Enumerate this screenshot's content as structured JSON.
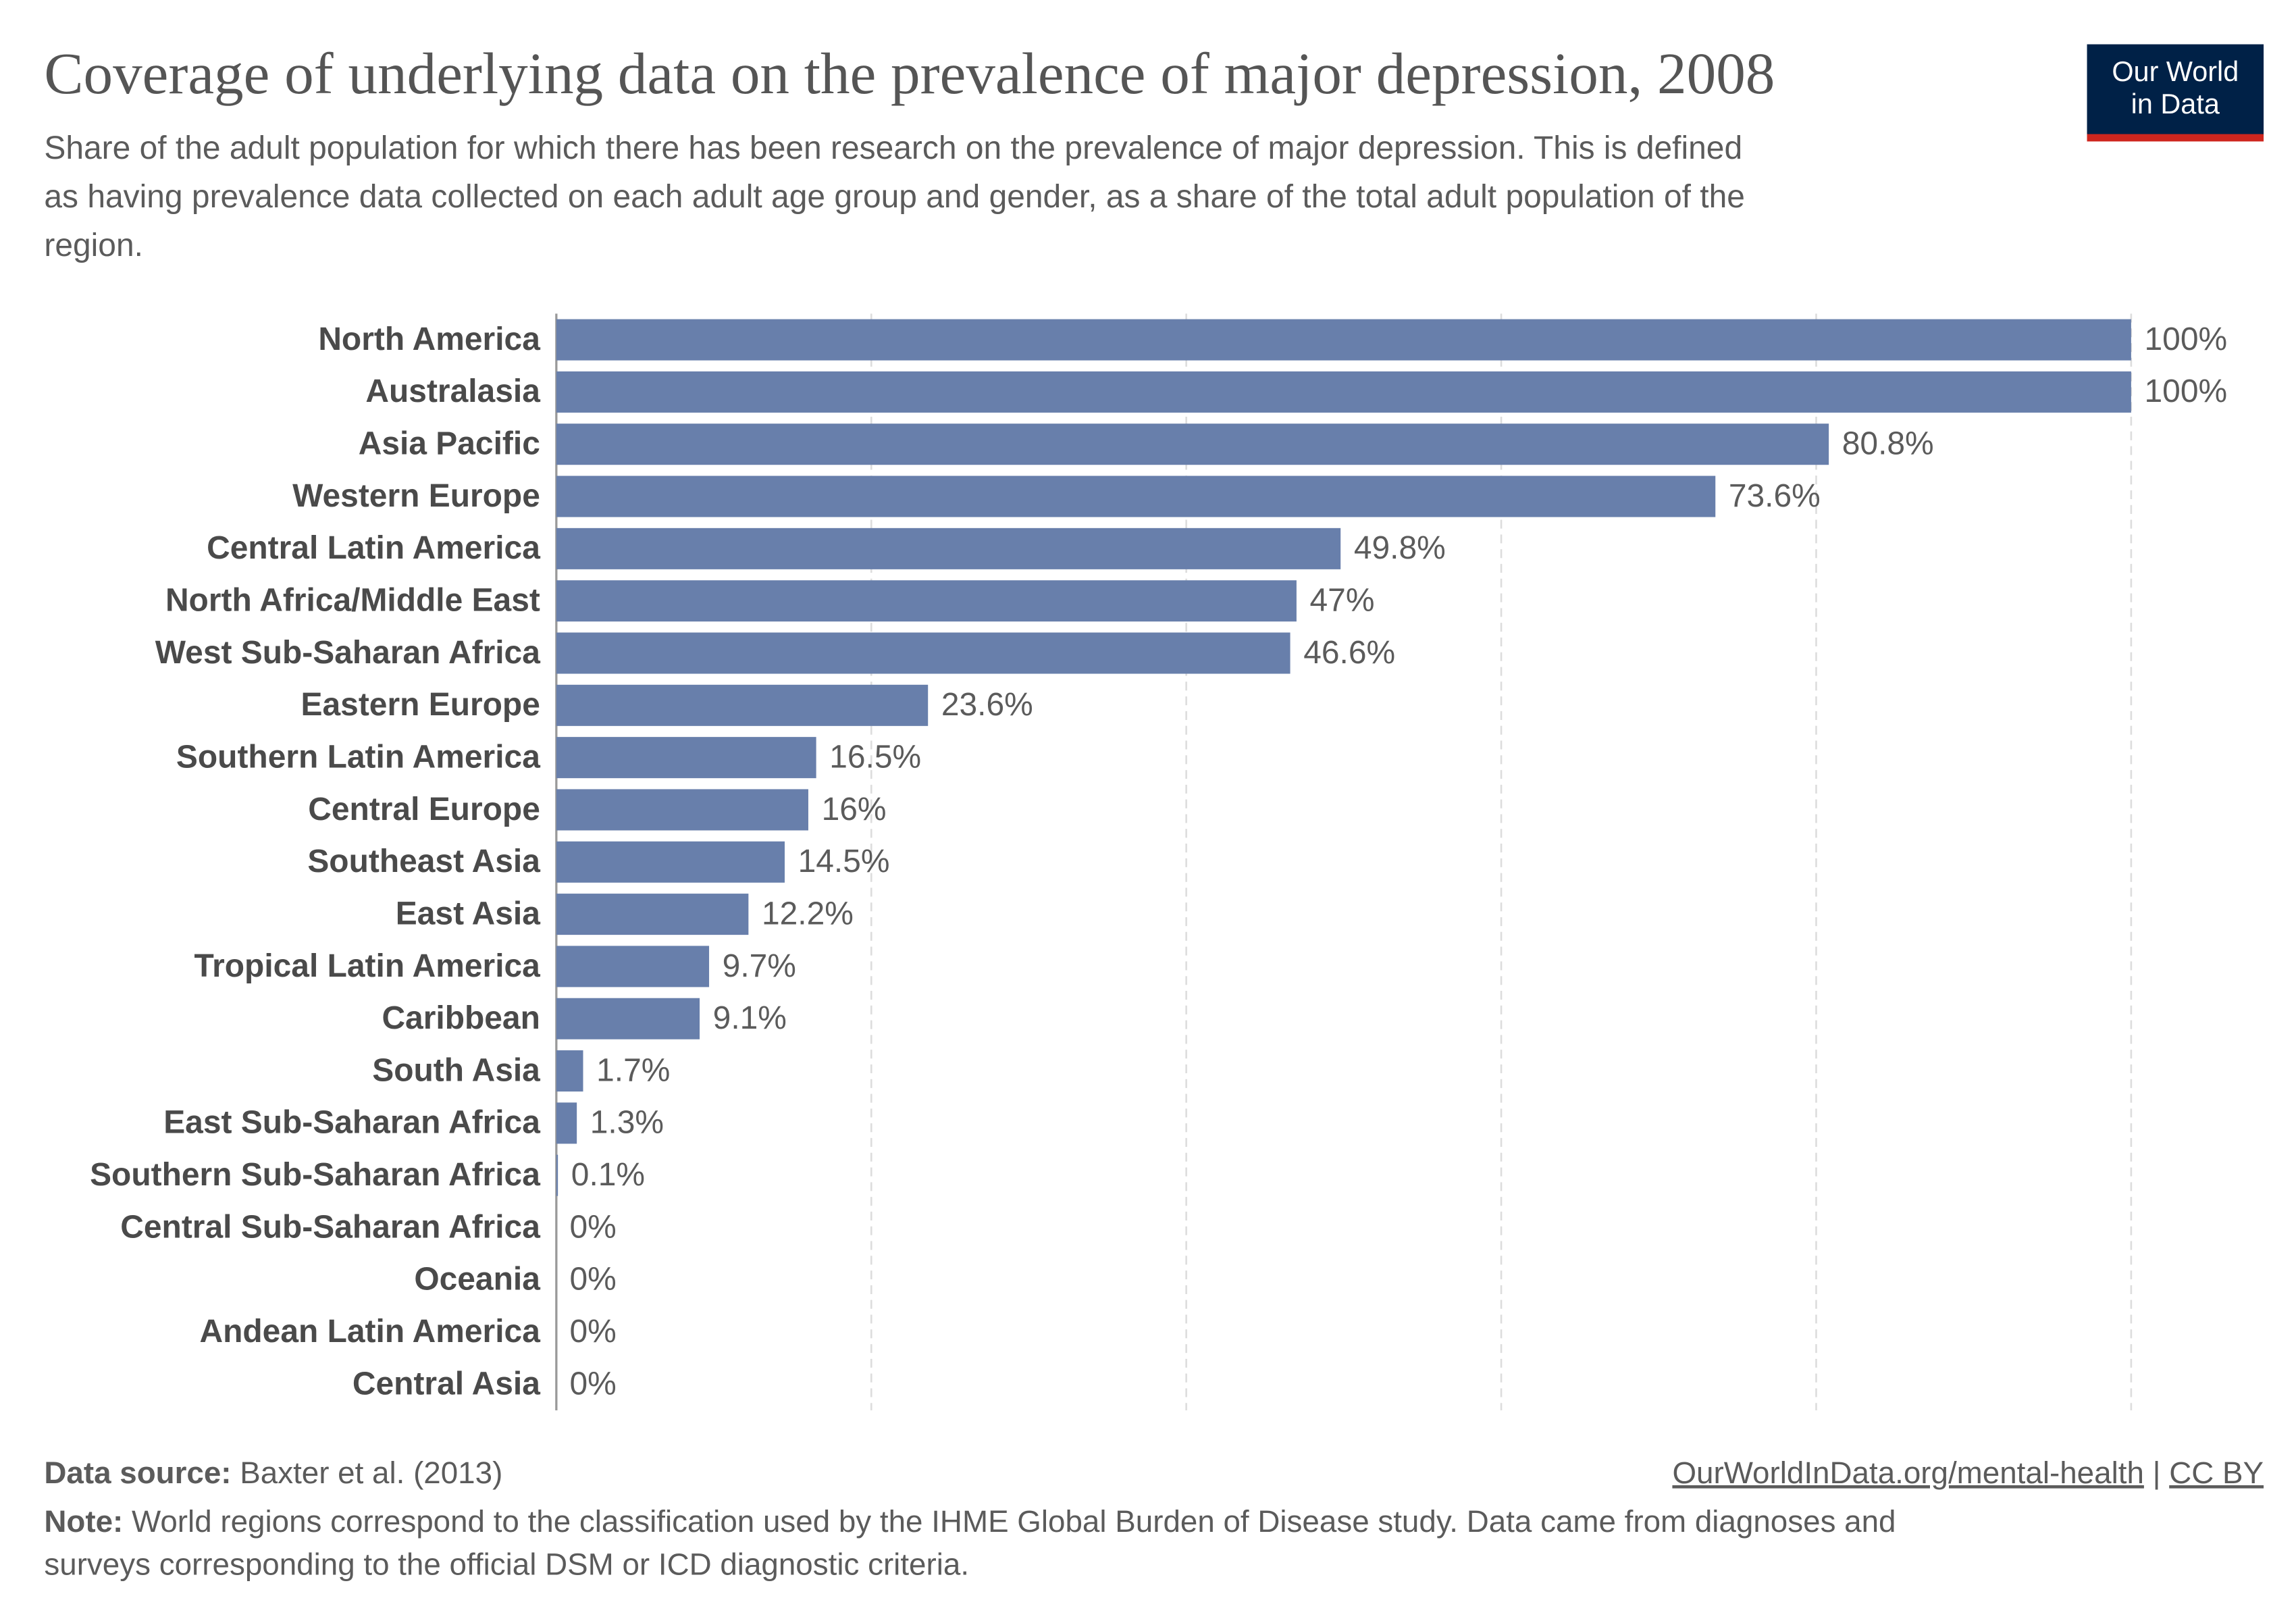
{
  "logo": [
    "Our World",
    "in Data"
  ],
  "chart_data": {
    "type": "bar",
    "orientation": "horizontal",
    "title": "Coverage of underlying data on the prevalence of major depression, 2008",
    "subtitle": [
      "Share of the adult population for which there has been research on the prevalence of major depression. This is defined",
      "as having prevalence data collected on each adult age group and gender, as a share of the total adult population of the",
      "region."
    ],
    "categories": [
      "North America",
      "Australasia",
      "Asia Pacific",
      "Western Europe",
      "Central Latin America",
      "North Africa/Middle East",
      "West Sub-Saharan Africa",
      "Eastern Europe",
      "Southern Latin America",
      "Central Europe",
      "Southeast Asia",
      "East Asia",
      "Tropical Latin America",
      "Caribbean",
      "South Asia",
      "East Sub-Saharan Africa",
      "Southern Sub-Saharan Africa",
      "Central Sub-Saharan Africa",
      "Oceania",
      "Andean Latin America",
      "Central Asia"
    ],
    "values": [
      100,
      100,
      80.8,
      73.6,
      49.8,
      47,
      46.6,
      23.6,
      16.5,
      16,
      14.5,
      12.2,
      9.7,
      9.1,
      1.7,
      1.3,
      0.1,
      0,
      0,
      0,
      0
    ],
    "value_labels": [
      "100%",
      "100%",
      "80.8%",
      "73.6%",
      "49.8%",
      "47%",
      "46.6%",
      "23.6%",
      "16.5%",
      "16%",
      "14.5%",
      "12.2%",
      "9.7%",
      "9.1%",
      "1.7%",
      "1.3%",
      "0.1%",
      "0%",
      "0%",
      "0%",
      "0%"
    ],
    "color": "#687fab",
    "xlim": [
      0,
      100
    ],
    "xticks": [
      0,
      20,
      40,
      60,
      80,
      100
    ],
    "grid": true,
    "source_label": "Data source:",
    "source": "Baxter et al. (2013)",
    "url": "OurWorldInData.org/mental-health",
    "separator": "|",
    "license": "CC BY",
    "note_label": "Note:",
    "note": [
      "World regions correspond to the classification used by the IHME Global Burden of Disease study. Data came from diagnoses and",
      "surveys corresponding to the official DSM or ICD diagnostic criteria."
    ]
  }
}
